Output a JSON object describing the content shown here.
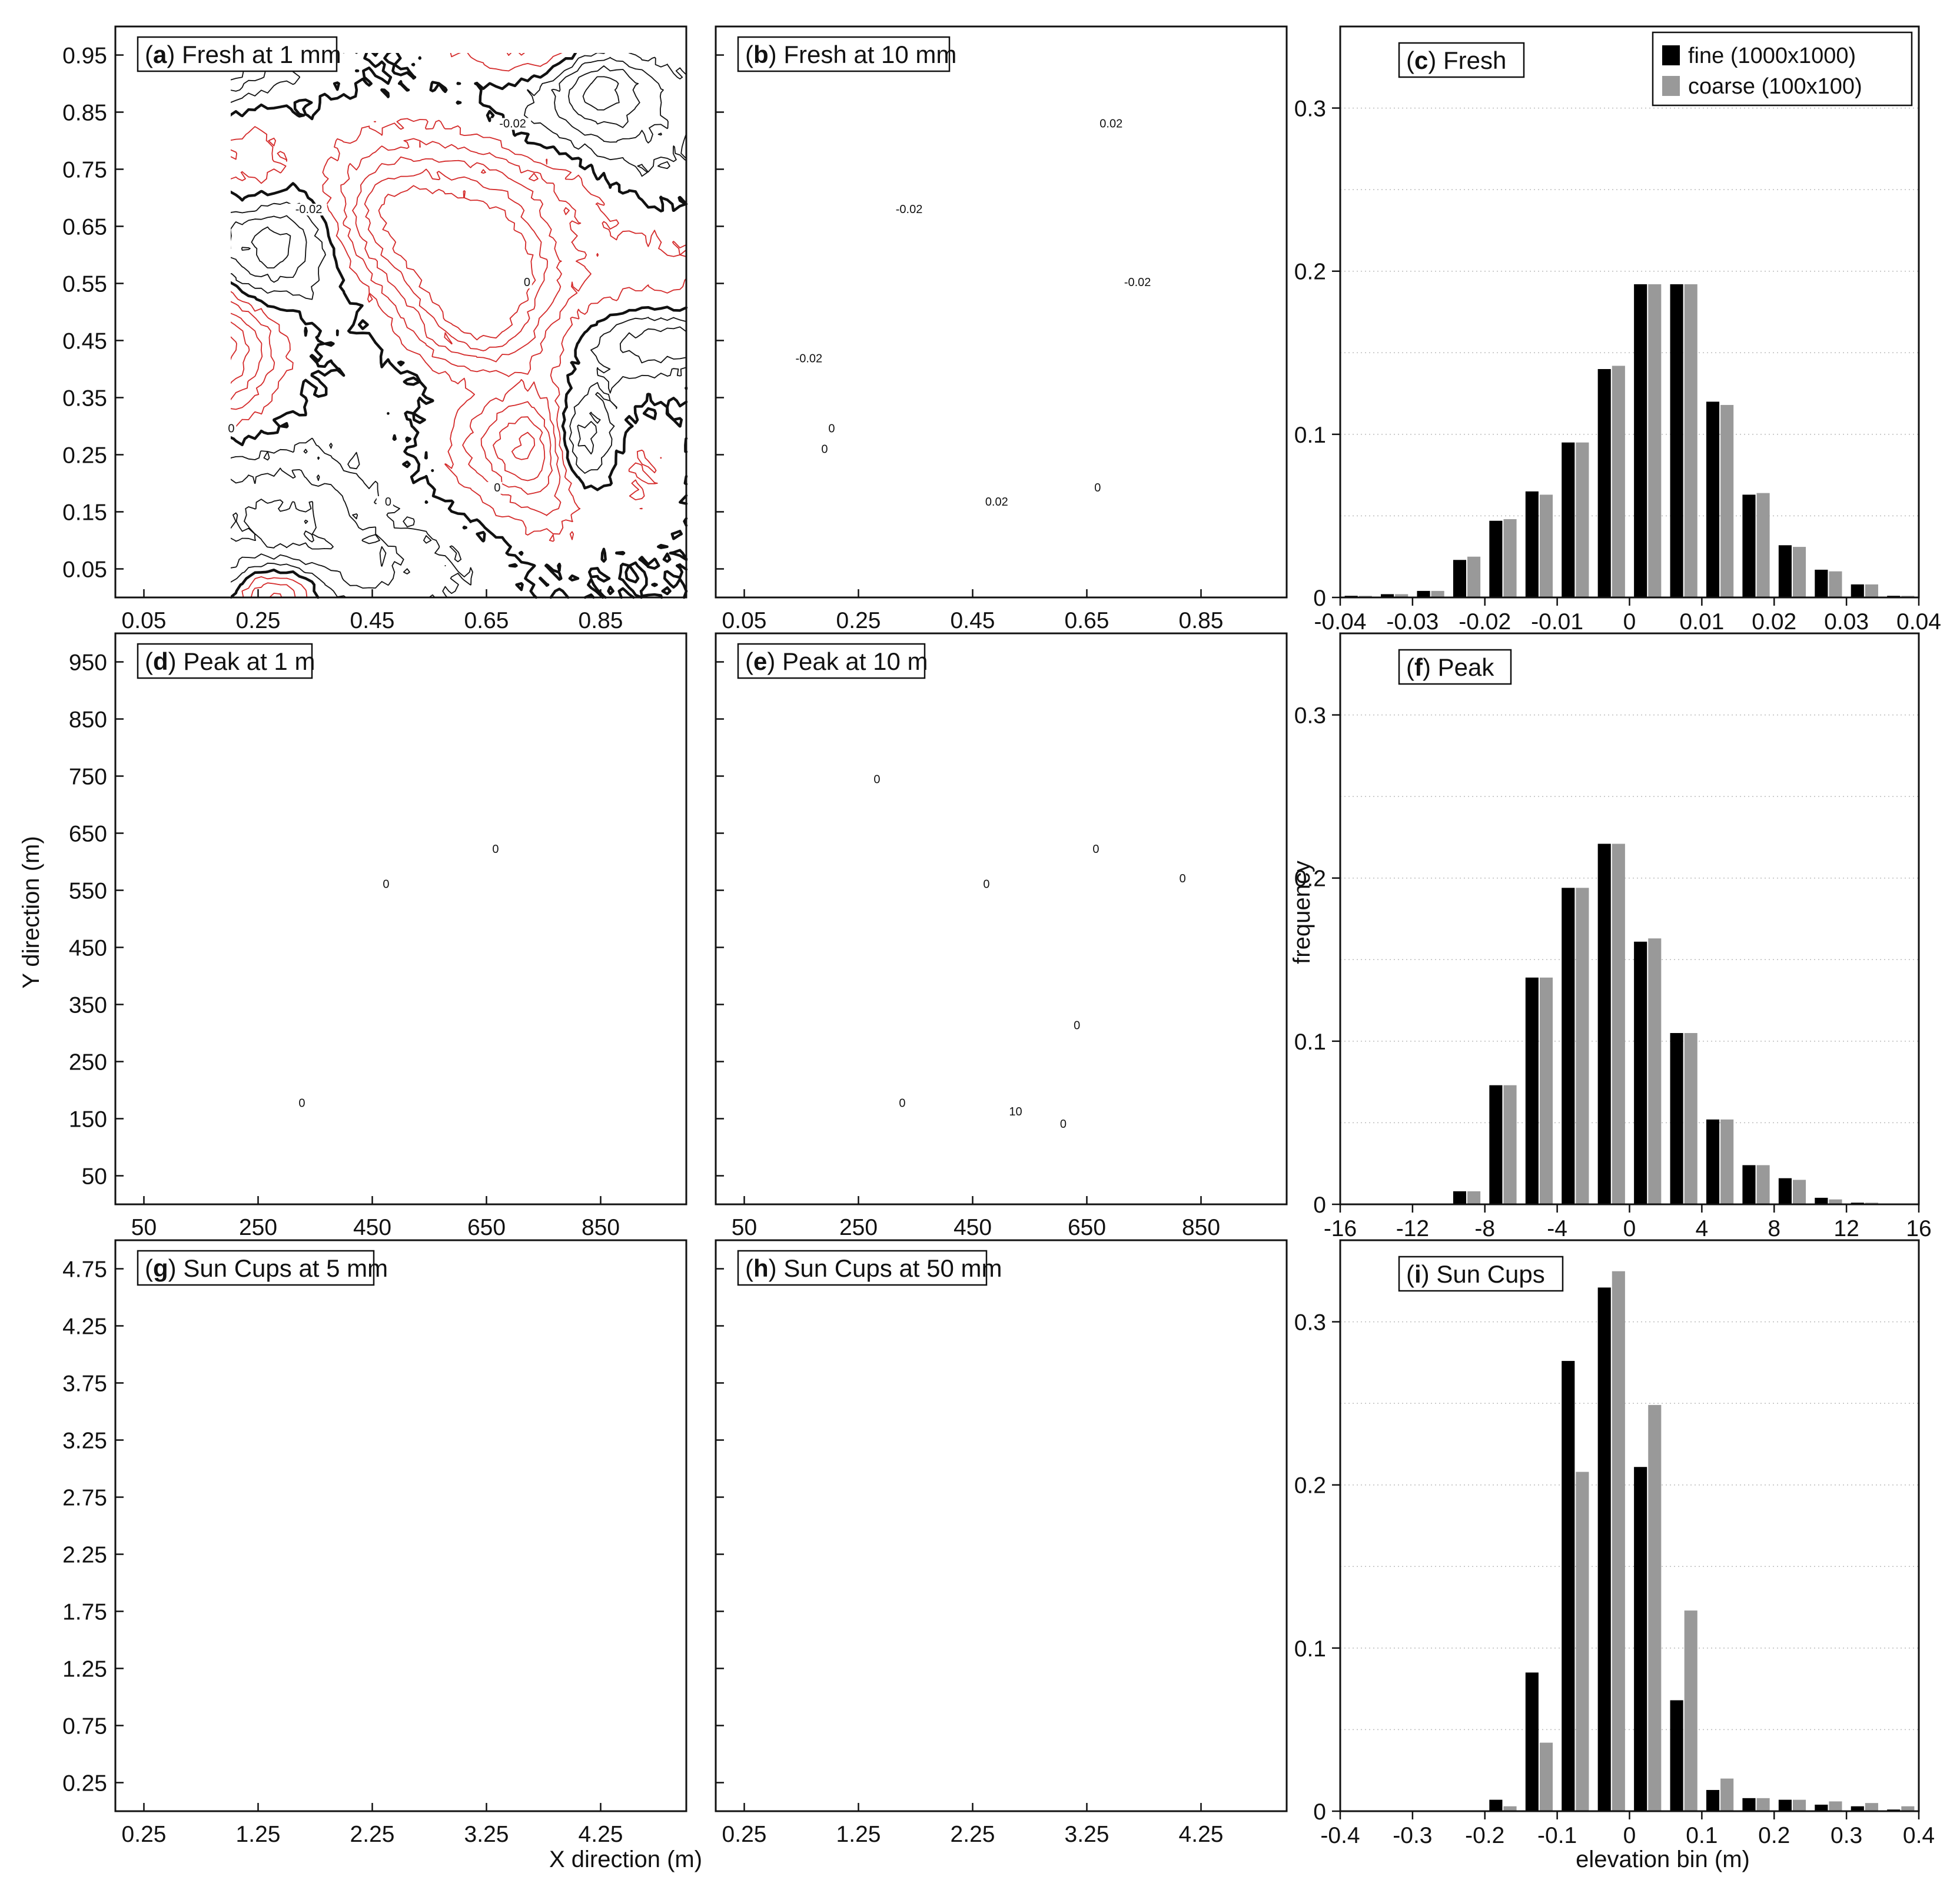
{
  "figure": {
    "xlabel": "X direction (m)",
    "ylabel": "Y direction (m)",
    "hist_ylabel": "frequency",
    "hist_xlabel": "elevation bin (m)"
  },
  "colors": {
    "positive": "#111111",
    "negative": "#d42a2a",
    "fine": "#000000",
    "coarse": "#999999"
  },
  "panels": {
    "a": {
      "letter": "a",
      "label": " Fresh at 1 mm",
      "xticks": [
        "0.05",
        "0.25",
        "0.45",
        "0.65",
        "0.85"
      ],
      "yticks": [
        "0.05",
        "0.15",
        "0.25",
        "0.35",
        "0.45",
        "0.55",
        "0.65",
        "0.75",
        "0.85",
        "0.95"
      ],
      "contour_labels": [
        "-0.02",
        "0",
        "0",
        "0",
        "0",
        "-0.02"
      ]
    },
    "b": {
      "letter": "b",
      "label": " Fresh at 10 mm",
      "xticks": [
        "0.05",
        "0.25",
        "0.45",
        "0.65",
        "0.85"
      ],
      "contour_labels": [
        "-0.02",
        "0",
        "0",
        "-0.02",
        "0.02",
        "0.02",
        "-0.02",
        "0"
      ]
    },
    "d": {
      "letter": "d",
      "label": " Peak at 1 m",
      "xticks": [
        "50",
        "250",
        "450",
        "650",
        "850"
      ],
      "yticks": [
        "50",
        "150",
        "250",
        "350",
        "450",
        "550",
        "650",
        "750",
        "850",
        "950"
      ],
      "contour_labels": [
        "0",
        "0",
        "0"
      ]
    },
    "e": {
      "letter": "e",
      "label": " Peak at 10 m",
      "xticks": [
        "50",
        "250",
        "450",
        "650",
        "850"
      ],
      "contour_labels": [
        "0",
        "0",
        "0",
        "10",
        "0",
        "0",
        "0",
        "0"
      ]
    },
    "g": {
      "letter": "g",
      "label": " Sun Cups at 5 mm",
      "xticks": [
        "0.25",
        "1.25",
        "2.25",
        "3.25",
        "4.25"
      ],
      "yticks": [
        "0.25",
        "0.75",
        "1.25",
        "1.75",
        "2.25",
        "2.75",
        "3.25",
        "3.75",
        "4.25",
        "4.75"
      ]
    },
    "h": {
      "letter": "h",
      "label": " Sun Cups at 50 mm",
      "xticks": [
        "0.25",
        "1.25",
        "2.25",
        "3.25",
        "4.25"
      ]
    }
  },
  "chart_data": [
    {
      "id": "c",
      "type": "bar",
      "title": "(c) Fresh",
      "letter": "c",
      "label_rest": ") Fresh",
      "ylim": [
        0,
        0.35
      ],
      "yticks": [
        "0",
        "0.1",
        "0.2",
        "0.3"
      ],
      "ytick_values": [
        0,
        0.1,
        0.2,
        0.3
      ],
      "xlim": [
        -0.04,
        0.04
      ],
      "xtick_values": [
        -0.04,
        -0.03,
        -0.02,
        -0.01,
        0,
        0.01,
        0.02,
        0.03,
        0.04
      ],
      "xticks": [
        "-0.04",
        "-0.03",
        "-0.02",
        "-0.01",
        "0",
        "0.01",
        "0.02",
        "0.03",
        "0.04"
      ],
      "bin_width": 0.005,
      "centers": [
        -0.0375,
        -0.0325,
        -0.0275,
        -0.0225,
        -0.0175,
        -0.0125,
        -0.0075,
        -0.0025,
        0.0025,
        0.0075,
        0.0125,
        0.0175,
        0.0225,
        0.0275,
        0.0325,
        0.0375
      ],
      "series": [
        {
          "name": "fine (1000x1000)",
          "values": [
            0.001,
            0.002,
            0.004,
            0.023,
            0.047,
            0.065,
            0.095,
            0.14,
            0.192,
            0.192,
            0.12,
            0.063,
            0.032,
            0.017,
            0.008,
            0.001
          ]
        },
        {
          "name": "coarse (100x100)",
          "values": [
            0.001,
            0.002,
            0.004,
            0.025,
            0.048,
            0.063,
            0.095,
            0.142,
            0.192,
            0.192,
            0.118,
            0.064,
            0.031,
            0.016,
            0.008,
            0.001
          ]
        }
      ]
    },
    {
      "id": "f",
      "type": "bar",
      "title": "(f) Peak",
      "letter": "f",
      "label_rest": ") Peak",
      "ylim": [
        0,
        0.35
      ],
      "yticks": [
        "0",
        "0.1",
        "0.2",
        "0.3"
      ],
      "ytick_values": [
        0,
        0.1,
        0.2,
        0.3
      ],
      "xlim": [
        -16,
        16
      ],
      "xtick_values": [
        -16,
        -12,
        -8,
        -4,
        0,
        4,
        8,
        12,
        16
      ],
      "xticks": [
        "-16",
        "-12",
        "-8",
        "-4",
        "0",
        "4",
        "8",
        "12",
        "16"
      ],
      "bin_width": 2,
      "centers": [
        -9,
        -7,
        -5,
        -3,
        -1,
        1,
        3,
        5,
        7,
        9,
        11,
        13
      ],
      "series": [
        {
          "name": "fine (1000x1000)",
          "values": [
            0.008,
            0.073,
            0.139,
            0.194,
            0.221,
            0.161,
            0.105,
            0.052,
            0.024,
            0.016,
            0.004,
            0.001
          ]
        },
        {
          "name": "coarse (100x100)",
          "values": [
            0.008,
            0.073,
            0.139,
            0.194,
            0.221,
            0.163,
            0.105,
            0.052,
            0.024,
            0.015,
            0.003,
            0.001
          ]
        }
      ]
    },
    {
      "id": "i",
      "type": "bar",
      "title": "(i) Sun Cups",
      "letter": "i",
      "label_rest": ") Sun Cups",
      "ylim": [
        0,
        0.35
      ],
      "yticks": [
        "0",
        "0.1",
        "0.2",
        "0.3"
      ],
      "ytick_values": [
        0,
        0.1,
        0.2,
        0.3
      ],
      "xlim": [
        -0.4,
        0.4
      ],
      "xtick_values": [
        -0.4,
        -0.3,
        -0.2,
        -0.1,
        0,
        0.1,
        0.2,
        0.3,
        0.4
      ],
      "xticks": [
        "-0.4",
        "-0.3",
        "-0.2",
        "-0.1",
        "0",
        "0.1",
        "0.2",
        "0.3",
        "0.4"
      ],
      "xlabel": "elevation bin (m)",
      "bin_width": 0.05,
      "centers": [
        -0.175,
        -0.125,
        -0.075,
        -0.025,
        0.025,
        0.075,
        0.125,
        0.175,
        0.225,
        0.275,
        0.325,
        0.375
      ],
      "series": [
        {
          "name": "fine (1000x1000)",
          "values": [
            0.007,
            0.085,
            0.276,
            0.321,
            0.211,
            0.068,
            0.013,
            0.008,
            0.007,
            0.004,
            0.003,
            0.001
          ]
        },
        {
          "name": "coarse (100x100)",
          "values": [
            0.003,
            0.042,
            0.208,
            0.331,
            0.249,
            0.123,
            0.02,
            0.008,
            0.007,
            0.006,
            0.005,
            0.003
          ]
        }
      ]
    }
  ]
}
